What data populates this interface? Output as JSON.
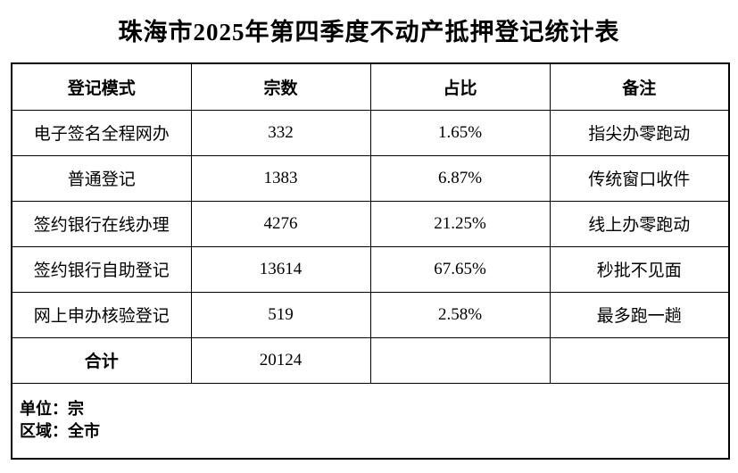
{
  "title": "珠海市2025年第四季度不动产抵押登记统计表",
  "colors": {
    "background": "#ffffff",
    "text": "#000000",
    "border": "#000000"
  },
  "table": {
    "columns": [
      "登记模式",
      "宗数",
      "占比",
      "备注"
    ],
    "rows": [
      {
        "mode": "电子签名全程网办",
        "count": "332",
        "percent": "1.65%",
        "remark": "指尖办零跑动"
      },
      {
        "mode": "普通登记",
        "count": "1383",
        "percent": "6.87%",
        "remark": "传统窗口收件"
      },
      {
        "mode": "签约银行在线办理",
        "count": "4276",
        "percent": "21.25%",
        "remark": "线上办零跑动"
      },
      {
        "mode": "签约银行自助登记",
        "count": "13614",
        "percent": "67.65%",
        "remark": "秒批不见面"
      },
      {
        "mode": "网上申办核验登记",
        "count": "519",
        "percent": "2.58%",
        "remark": "最多跑一趟"
      }
    ],
    "total": {
      "label": "合计",
      "count": "20124",
      "percent": "",
      "remark": ""
    }
  },
  "footer": {
    "unit": "单位：宗",
    "region": "区域：全市"
  },
  "chart_data": {
    "type": "table",
    "title": "珠海市2025年第四季度不动产抵押登记统计表",
    "columns": [
      "登记模式",
      "宗数",
      "占比",
      "备注"
    ],
    "rows": [
      [
        "电子签名全程网办",
        332,
        "1.65%",
        "指尖办零跑动"
      ],
      [
        "普通登记",
        1383,
        "6.87%",
        "传统窗口收件"
      ],
      [
        "签约银行在线办理",
        4276,
        "21.25%",
        "线上办零跑动"
      ],
      [
        "签约银行自助登记",
        13614,
        "67.65%",
        "秒批不见面"
      ],
      [
        "网上申办核验登记",
        519,
        "2.58%",
        "最多跑一趟"
      ],
      [
        "合计",
        20124,
        "",
        ""
      ]
    ],
    "notes": [
      "单位：宗",
      "区域：全市"
    ]
  }
}
